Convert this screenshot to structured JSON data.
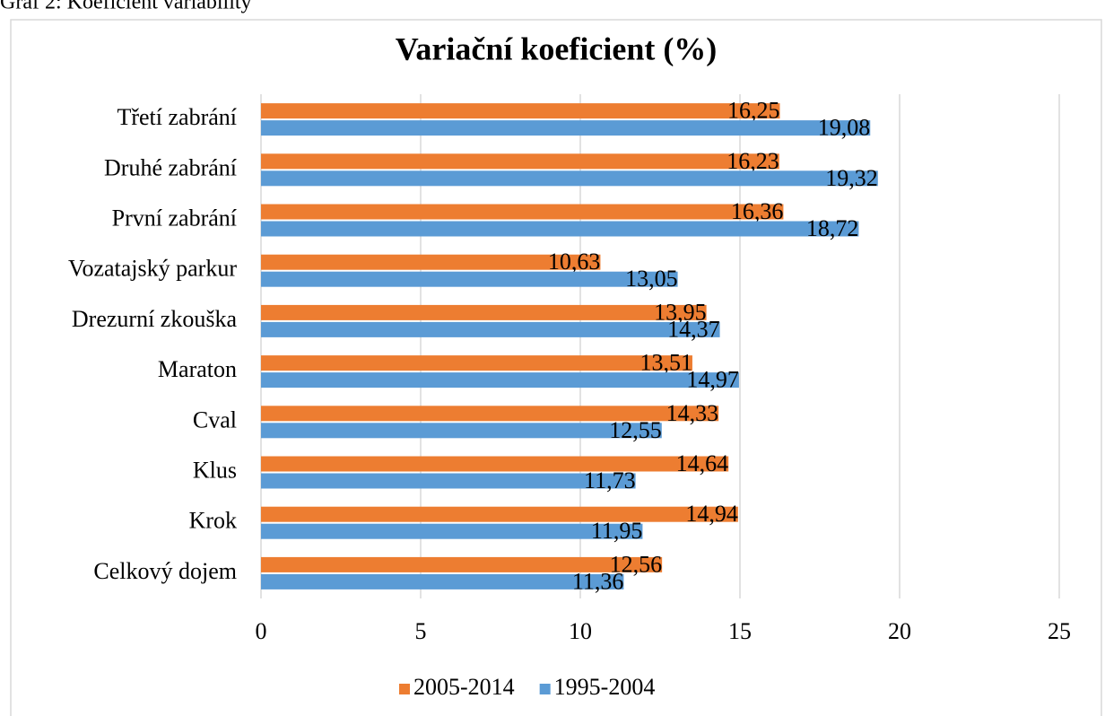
{
  "caption": "Graf 2: Koeficient variability",
  "chart_data": {
    "type": "hbar",
    "title": "Variační koeficient (%)",
    "categories": [
      "Třetí zabrání",
      "Druhé zabrání",
      "První zabrání",
      "Vozatajský parkur",
      "Drezurní zkouška",
      "Maraton",
      "Cval",
      "Klus",
      "Krok",
      "Celkový dojem"
    ],
    "series": [
      {
        "name": "2005-2014",
        "color": "#ed7d31",
        "values": [
          16.25,
          16.23,
          16.36,
          10.63,
          13.95,
          13.51,
          14.33,
          14.64,
          14.94,
          12.56
        ],
        "value_labels": [
          "16,25",
          "16,23",
          "16,36",
          "10,63",
          "13,95",
          "13,51",
          "14,33",
          "14,64",
          "14,94",
          "12,56"
        ]
      },
      {
        "name": "1995-2004",
        "color": "#5b9bd5",
        "values": [
          19.08,
          19.32,
          18.72,
          13.05,
          14.37,
          14.97,
          12.55,
          11.73,
          11.95,
          11.36
        ],
        "value_labels": [
          "19,08",
          "19,32",
          "18,72",
          "13,05",
          "14,37",
          "14,97",
          "12,55",
          "11,73",
          "11,95",
          "11,36"
        ]
      }
    ],
    "xlim": [
      0,
      25
    ],
    "xticks": [
      0,
      5,
      10,
      15,
      20,
      25
    ],
    "grid": true,
    "legend": "bottom"
  }
}
